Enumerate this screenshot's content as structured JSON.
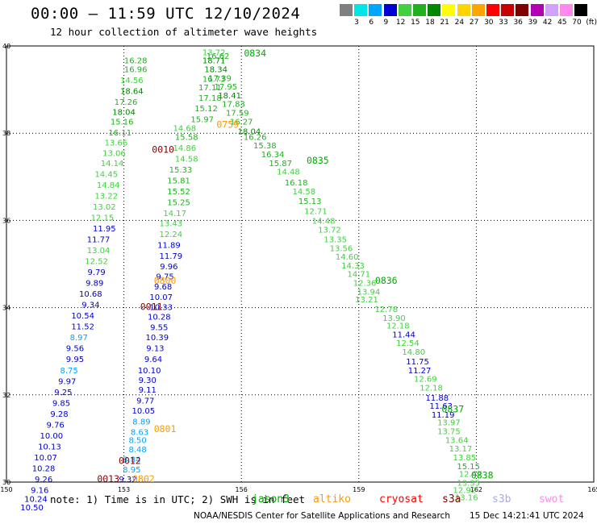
{
  "header": {
    "title": "00:00 – 11:59 UTC 12/10/2024",
    "subtitle": "12 hour collection of altimeter wave heights"
  },
  "color_scale": {
    "colors": [
      "#808080",
      "#00e5e5",
      "#00a5ff",
      "#0000d0",
      "#40d040",
      "#20b020",
      "#008800",
      "#ffff00",
      "#ffd400",
      "#ffa500",
      "#ff0000",
      "#c80000",
      "#800000",
      "#b400b4",
      "#d2a0ff",
      "#ff88ee",
      "#000000"
    ],
    "labels": [
      "3",
      "6",
      "9",
      "12",
      "15",
      "18",
      "21",
      "24",
      "27",
      "30",
      "33",
      "36",
      "39",
      "42",
      "45",
      "70",
      "(ft)"
    ]
  },
  "notes": {
    "note": "note:  1) Time is in UTC; 2) SWH is in feet",
    "satellites": [
      {
        "name": "jason3",
        "color": "#00aa00"
      },
      {
        "name": "altiko",
        "color": "#ff9900"
      },
      {
        "name": "cryosat",
        "color": "#ff0000"
      },
      {
        "name": "s3a",
        "color": "#880000"
      },
      {
        "name": "s3b",
        "color": "#a8a8e8"
      },
      {
        "name": "swot",
        "color": "#ff88ee"
      }
    ]
  },
  "footer": {
    "credit": "NOAA/NESDIS Center for Satellite Applications and Research",
    "timestamp": "15 Dec 14:21:41 UTC 2024"
  },
  "chart_data": {
    "type": "scatter",
    "title": "00:00 – 11:59 UTC 12/10/2024",
    "xlim": [
      150,
      165
    ],
    "ylim": [
      30,
      40
    ],
    "xticks": [
      150,
      153,
      156,
      159,
      162,
      165
    ],
    "yticks": [
      30,
      32,
      34,
      36,
      38,
      40
    ],
    "grid": true,
    "time_labels": [
      {
        "x": 156.35,
        "y": 39.76,
        "t": "0834",
        "sat": "jason3"
      },
      {
        "x": 155.65,
        "y": 38.12,
        "t": "0759",
        "sat": "altiko"
      },
      {
        "x": 154.0,
        "y": 37.55,
        "t": "0010",
        "sat": "s3a"
      },
      {
        "x": 157.95,
        "y": 37.3,
        "t": "0835",
        "sat": "jason3"
      },
      {
        "x": 154.05,
        "y": 34.55,
        "t": "0800",
        "sat": "altiko"
      },
      {
        "x": 153.7,
        "y": 33.95,
        "t": "0011",
        "sat": "s3a"
      },
      {
        "x": 159.7,
        "y": 34.55,
        "t": "0836",
        "sat": "jason3"
      },
      {
        "x": 161.4,
        "y": 31.6,
        "t": "0837",
        "sat": "jason3"
      },
      {
        "x": 154.05,
        "y": 31.15,
        "t": "0801",
        "sat": "altiko"
      },
      {
        "x": 153.15,
        "y": 30.42,
        "t": "0012",
        "sat": "s3a"
      },
      {
        "x": 153.5,
        "y": 30.0,
        "t": "0802",
        "sat": "altiko"
      },
      {
        "x": 152.6,
        "y": 30.0,
        "t": "0013",
        "sat": "s3a"
      },
      {
        "x": 162.15,
        "y": 30.08,
        "t": "0838",
        "sat": "jason3"
      }
    ],
    "points": [
      {
        "x": 155.3,
        "y": 39.79,
        "v": 13.72
      },
      {
        "x": 155.4,
        "y": 39.7,
        "v": 16.62
      },
      {
        "x": 155.3,
        "y": 39.6,
        "v": 18.71
      },
      {
        "x": 155.35,
        "y": 39.4,
        "v": 18.34
      },
      {
        "x": 155.3,
        "y": 39.18,
        "v": 16.73
      },
      {
        "x": 155.45,
        "y": 39.2,
        "v": 17.39
      },
      {
        "x": 155.2,
        "y": 38.98,
        "v": 17.11
      },
      {
        "x": 155.6,
        "y": 39.0,
        "v": 17.95
      },
      {
        "x": 155.7,
        "y": 38.8,
        "v": 18.41
      },
      {
        "x": 155.2,
        "y": 38.74,
        "v": 17.18
      },
      {
        "x": 155.8,
        "y": 38.6,
        "v": 17.83
      },
      {
        "x": 155.1,
        "y": 38.5,
        "v": 15.12
      },
      {
        "x": 155.9,
        "y": 38.4,
        "v": 17.59
      },
      {
        "x": 155.0,
        "y": 38.25,
        "v": 15.97
      },
      {
        "x": 156.0,
        "y": 38.2,
        "v": 16.27
      },
      {
        "x": 156.2,
        "y": 37.98,
        "v": 18.04
      },
      {
        "x": 154.55,
        "y": 38.05,
        "v": 14.68
      },
      {
        "x": 156.35,
        "y": 37.85,
        "v": 16.26
      },
      {
        "x": 156.6,
        "y": 37.65,
        "v": 15.38
      },
      {
        "x": 154.6,
        "y": 37.85,
        "v": 15.58
      },
      {
        "x": 154.55,
        "y": 37.6,
        "v": 14.86
      },
      {
        "x": 156.8,
        "y": 37.45,
        "v": 16.34
      },
      {
        "x": 154.6,
        "y": 37.35,
        "v": 14.58
      },
      {
        "x": 157.0,
        "y": 37.25,
        "v": 15.87
      },
      {
        "x": 154.45,
        "y": 37.1,
        "v": 15.33
      },
      {
        "x": 157.2,
        "y": 37.05,
        "v": 14.48
      },
      {
        "x": 157.4,
        "y": 36.8,
        "v": 16.18
      },
      {
        "x": 154.4,
        "y": 36.85,
        "v": 15.81
      },
      {
        "x": 157.6,
        "y": 36.6,
        "v": 14.58
      },
      {
        "x": 154.4,
        "y": 36.6,
        "v": 15.52
      },
      {
        "x": 157.75,
        "y": 36.38,
        "v": 15.13
      },
      {
        "x": 154.4,
        "y": 36.35,
        "v": 15.25
      },
      {
        "x": 157.9,
        "y": 36.15,
        "v": 12.71
      },
      {
        "x": 154.3,
        "y": 36.1,
        "v": 14.17
      },
      {
        "x": 158.1,
        "y": 35.92,
        "v": 14.48
      },
      {
        "x": 154.2,
        "y": 35.87,
        "v": 13.43
      },
      {
        "x": 158.25,
        "y": 35.72,
        "v": 13.72
      },
      {
        "x": 154.2,
        "y": 35.62,
        "v": 12.24
      },
      {
        "x": 158.4,
        "y": 35.5,
        "v": 13.35
      },
      {
        "x": 158.55,
        "y": 35.3,
        "v": 13.56
      },
      {
        "x": 154.15,
        "y": 35.37,
        "v": 11.89
      },
      {
        "x": 158.7,
        "y": 35.1,
        "v": 14.6
      },
      {
        "x": 154.2,
        "y": 35.12,
        "v": 11.79
      },
      {
        "x": 158.85,
        "y": 34.9,
        "v": 14.33
      },
      {
        "x": 154.15,
        "y": 34.88,
        "v": 9.96
      },
      {
        "x": 159.0,
        "y": 34.7,
        "v": 14.71
      },
      {
        "x": 154.05,
        "y": 34.65,
        "v": 9.75
      },
      {
        "x": 159.15,
        "y": 34.5,
        "v": 12.36
      },
      {
        "x": 154.0,
        "y": 34.42,
        "v": 9.68
      },
      {
        "x": 159.25,
        "y": 34.3,
        "v": 13.94
      },
      {
        "x": 153.95,
        "y": 34.18,
        "v": 10.07
      },
      {
        "x": 159.2,
        "y": 34.12,
        "v": 13.21
      },
      {
        "x": 153.95,
        "y": 33.95,
        "v": 10.33
      },
      {
        "x": 159.7,
        "y": 33.9,
        "v": 12.78
      },
      {
        "x": 153.9,
        "y": 33.72,
        "v": 10.28
      },
      {
        "x": 159.9,
        "y": 33.7,
        "v": 13.9
      },
      {
        "x": 160.0,
        "y": 33.52,
        "v": 12.18
      },
      {
        "x": 153.9,
        "y": 33.48,
        "v": 9.55
      },
      {
        "x": 160.15,
        "y": 33.32,
        "v": 11.44
      },
      {
        "x": 153.85,
        "y": 33.25,
        "v": 10.39
      },
      {
        "x": 160.25,
        "y": 33.12,
        "v": 12.54
      },
      {
        "x": 153.8,
        "y": 33.0,
        "v": 9.13
      },
      {
        "x": 160.4,
        "y": 32.92,
        "v": 14.8
      },
      {
        "x": 153.75,
        "y": 32.75,
        "v": 9.64
      },
      {
        "x": 160.5,
        "y": 32.7,
        "v": 11.75
      },
      {
        "x": 160.55,
        "y": 32.5,
        "v": 11.27
      },
      {
        "x": 153.65,
        "y": 32.5,
        "v": 10.1
      },
      {
        "x": 160.7,
        "y": 32.3,
        "v": 12.69
      },
      {
        "x": 153.6,
        "y": 32.27,
        "v": 9.3
      },
      {
        "x": 160.85,
        "y": 32.1,
        "v": 12.18
      },
      {
        "x": 153.6,
        "y": 32.05,
        "v": 9.11
      },
      {
        "x": 161.0,
        "y": 31.87,
        "v": 11.88
      },
      {
        "x": 153.55,
        "y": 31.8,
        "v": 9.77
      },
      {
        "x": 161.1,
        "y": 31.68,
        "v": 11.63
      },
      {
        "x": 153.5,
        "y": 31.57,
        "v": 10.05
      },
      {
        "x": 161.15,
        "y": 31.48,
        "v": 11.19
      },
      {
        "x": 161.3,
        "y": 31.3,
        "v": 13.97
      },
      {
        "x": 153.45,
        "y": 31.32,
        "v": 8.89
      },
      {
        "x": 161.3,
        "y": 31.1,
        "v": 13.75
      },
      {
        "x": 153.4,
        "y": 31.08,
        "v": 8.63
      },
      {
        "x": 153.35,
        "y": 30.9,
        "v": 8.5
      },
      {
        "x": 161.5,
        "y": 30.9,
        "v": 13.64
      },
      {
        "x": 161.6,
        "y": 30.7,
        "v": 13.17
      },
      {
        "x": 153.35,
        "y": 30.68,
        "v": 8.48
      },
      {
        "x": 161.7,
        "y": 30.5,
        "v": 13.85
      },
      {
        "x": 153.2,
        "y": 30.45,
        "v": 8.84
      },
      {
        "x": 161.8,
        "y": 30.3,
        "v": 15.15
      },
      {
        "x": 153.2,
        "y": 30.22,
        "v": 8.95
      },
      {
        "x": 161.85,
        "y": 30.12,
        "v": 12.47
      },
      {
        "x": 153.1,
        "y": 30.0,
        "v": 9.32
      },
      {
        "x": 161.8,
        "y": 29.92,
        "v": 13.35
      },
      {
        "x": 161.7,
        "y": 29.75,
        "v": 12.92
      },
      {
        "x": 161.75,
        "y": 29.58,
        "v": 13.16
      },
      {
        "x": 153.3,
        "y": 39.6,
        "v": 16.28
      },
      {
        "x": 153.3,
        "y": 39.4,
        "v": 16.96
      },
      {
        "x": 153.2,
        "y": 39.15,
        "v": 14.56
      },
      {
        "x": 153.2,
        "y": 38.9,
        "v": 18.64
      },
      {
        "x": 153.05,
        "y": 38.65,
        "v": 17.26
      },
      {
        "x": 153.0,
        "y": 38.42,
        "v": 18.04
      },
      {
        "x": 152.95,
        "y": 38.2,
        "v": 15.16
      },
      {
        "x": 152.9,
        "y": 37.95,
        "v": 16.11
      },
      {
        "x": 152.8,
        "y": 37.72,
        "v": 13.66
      },
      {
        "x": 152.75,
        "y": 37.48,
        "v": 13.06
      },
      {
        "x": 152.7,
        "y": 37.25,
        "v": 14.14
      },
      {
        "x": 152.55,
        "y": 37.0,
        "v": 14.45
      },
      {
        "x": 152.6,
        "y": 36.75,
        "v": 14.84
      },
      {
        "x": 152.55,
        "y": 36.5,
        "v": 13.22
      },
      {
        "x": 152.5,
        "y": 36.25,
        "v": 13.02
      },
      {
        "x": 152.45,
        "y": 36.0,
        "v": 12.15
      },
      {
        "x": 152.5,
        "y": 35.75,
        "v": 11.95
      },
      {
        "x": 152.35,
        "y": 35.5,
        "v": 11.77
      },
      {
        "x": 152.35,
        "y": 35.25,
        "v": 13.04
      },
      {
        "x": 152.3,
        "y": 35.0,
        "v": 12.52
      },
      {
        "x": 152.3,
        "y": 34.75,
        "v": 9.79
      },
      {
        "x": 152.25,
        "y": 34.5,
        "v": 9.89
      },
      {
        "x": 152.15,
        "y": 34.25,
        "v": 10.68
      },
      {
        "x": 152.15,
        "y": 34.0,
        "v": 9.34
      },
      {
        "x": 151.95,
        "y": 33.75,
        "v": 10.54
      },
      {
        "x": 151.95,
        "y": 33.5,
        "v": 11.52
      },
      {
        "x": 151.85,
        "y": 33.25,
        "v": 8.97
      },
      {
        "x": 151.75,
        "y": 33.0,
        "v": 9.56
      },
      {
        "x": 151.75,
        "y": 32.75,
        "v": 9.95
      },
      {
        "x": 151.6,
        "y": 32.5,
        "v": 8.75
      },
      {
        "x": 151.55,
        "y": 32.25,
        "v": 9.97
      },
      {
        "x": 151.45,
        "y": 32.0,
        "v": 9.25
      },
      {
        "x": 151.4,
        "y": 31.75,
        "v": 9.85
      },
      {
        "x": 151.35,
        "y": 31.5,
        "v": 9.28
      },
      {
        "x": 151.25,
        "y": 31.25,
        "v": 9.76
      },
      {
        "x": 151.15,
        "y": 31.0,
        "v": 10.0
      },
      {
        "x": 151.1,
        "y": 30.75,
        "v": 10.13
      },
      {
        "x": 151.0,
        "y": 30.5,
        "v": 10.07
      },
      {
        "x": 150.95,
        "y": 30.25,
        "v": 10.28
      },
      {
        "x": 150.95,
        "y": 30.0,
        "v": 9.26
      },
      {
        "x": 150.85,
        "y": 29.75,
        "v": 9.16
      },
      {
        "x": 150.75,
        "y": 29.55,
        "v": 10.24
      },
      {
        "x": 150.65,
        "y": 29.35,
        "v": 10.5
      }
    ]
  }
}
